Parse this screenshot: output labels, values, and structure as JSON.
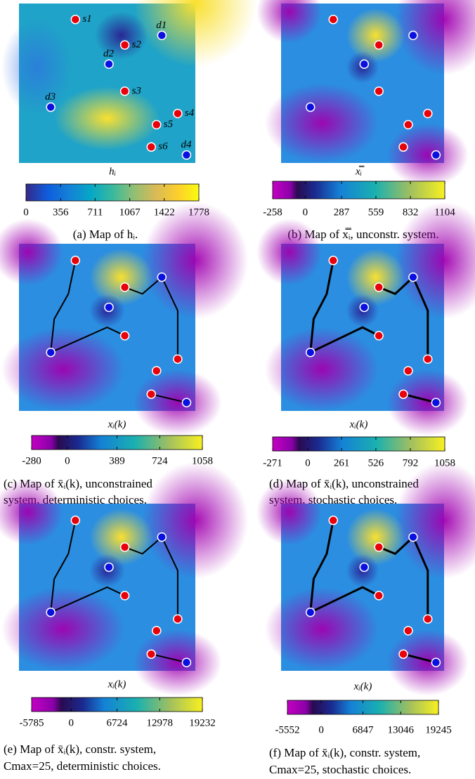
{
  "chart_data": [
    {
      "type": "heatmap",
      "map": "plain",
      "annotations": [
        "s1",
        "s2",
        "s3",
        "s4",
        "s5",
        "s6",
        "d1",
        "d2",
        "d3",
        "d4"
      ],
      "colorbar_label": "hᵢ",
      "clim": [
        0,
        1778
      ],
      "cticks": [
        0,
        356,
        711,
        1067,
        1422,
        1778
      ],
      "caption": [
        "(a) Map of hᵢ."
      ]
    },
    {
      "type": "heatmap",
      "map": "signed",
      "colorbar_label": "x̿ᵢ",
      "clim": [
        -258,
        1104
      ],
      "cticks": [
        -258,
        0,
        287,
        559,
        832,
        1104
      ],
      "caption": [
        "(b) Map of x̿ᵢ, unconstr. system."
      ]
    },
    {
      "type": "heatmap",
      "map": "signed",
      "colorbar_label": "xᵢ(k)",
      "clim": [
        -280,
        1058
      ],
      "cticks": [
        -280,
        0,
        389,
        724,
        1058
      ],
      "caption": [
        "(c) Map of x̄ᵢ(k), unconstrained",
        "system, deterministic choices."
      ]
    },
    {
      "type": "heatmap",
      "map": "signed",
      "colorbar_label": "xᵢ(k)",
      "clim": [
        -271,
        1058
      ],
      "cticks": [
        -271,
        0,
        261,
        526,
        792,
        1058
      ],
      "caption": [
        "(d) Map of x̄ᵢ(k), unconstrained",
        "system, stochastic choices."
      ]
    },
    {
      "type": "heatmap",
      "map": "signed",
      "colorbar_label": "xᵢ(k)",
      "clim": [
        -5785,
        19232
      ],
      "cticks": [
        -5785,
        0,
        6724,
        12978,
        19232
      ],
      "caption": [
        "(e) Map of x̄ᵢ(k), constr. system,",
        "Cmax=25, deterministic choices."
      ]
    },
    {
      "type": "heatmap",
      "map": "signed",
      "colorbar_label": "xᵢ(k)",
      "clim": [
        -5552,
        19245
      ],
      "cticks": [
        -5552,
        0,
        6847,
        13046,
        19245
      ],
      "caption": [
        "(f) Map of x̄ᵢ(k), constr. system,",
        "Cmax=25, stochastic choices."
      ]
    }
  ]
}
